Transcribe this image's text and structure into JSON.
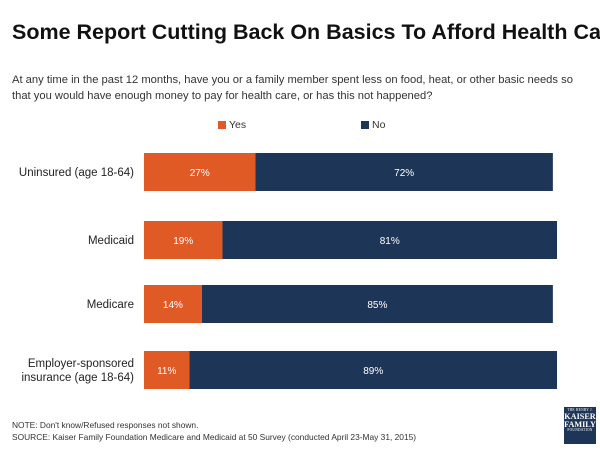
{
  "title": "Some Report Cutting Back On Basics To Afford Health Care",
  "subtitle": "At any time in the past 12 months, have you or a family member spent less on food, heat, or other basic needs so that you would have enough money to pay for health care, or has this not happened?",
  "footnote": {
    "note": "NOTE: Don't know/Refused responses not shown.",
    "source": "SOURCE: Kaiser Family Foundation Medicare and Medicaid at 50 Survey (conducted April 23-May 31, 2015)"
  },
  "logo": {
    "line1": "THE HENRY J.",
    "line2": "KAISER",
    "line3": "FAMILY",
    "line4": "FOUNDATION"
  },
  "chart_data": {
    "type": "bar",
    "orientation": "horizontal",
    "stacked": true,
    "title": "Some Report Cutting Back On Basics To Afford Health Care",
    "categories": [
      [
        "Uninsured (age 18-64)"
      ],
      [
        "Medicaid"
      ],
      [
        "Medicare"
      ],
      [
        "Employer-sponsored",
        "insurance (age 18-64)"
      ]
    ],
    "series": [
      {
        "name": "Yes",
        "color": "#e05a26",
        "values": [
          27,
          19,
          14,
          11
        ]
      },
      {
        "name": "No",
        "color": "#1d3557",
        "values": [
          72,
          81,
          85,
          89
        ]
      }
    ],
    "value_suffix": "%",
    "xlim": [
      0,
      100
    ],
    "legend": "top-center",
    "grid": false,
    "xlabel": "",
    "ylabel": ""
  }
}
